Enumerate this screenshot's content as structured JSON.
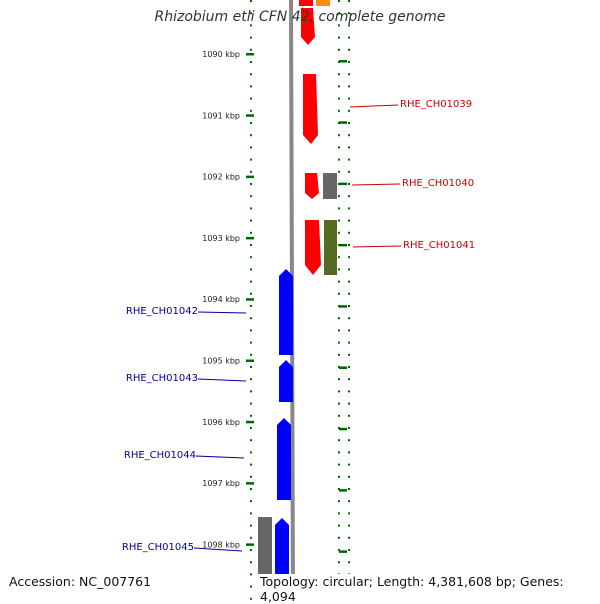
{
  "title": "Rhizobium etli CFN 42, complete genome",
  "footer": {
    "accession_label": "Accession:",
    "accession": "NC_007761",
    "topology": "Topology: circular",
    "length": "Length: 4,381,608 bp",
    "genes": "Genes: 4,094"
  },
  "colors": {
    "backbone": "#888888",
    "tick": "#006600",
    "forward_label": "#cc0000",
    "reverse_label": "#000099",
    "gene_red": "#ff0000",
    "gene_blue": "#0000ff",
    "gene_gray": "#666666",
    "gene_olive": "#556b22",
    "gene_orange": "#ff8c00"
  },
  "scale_labels": [
    "1090 kbp",
    "1091 kbp",
    "1092 kbp",
    "1093 kbp",
    "1094 kbp",
    "1095 kbp",
    "1096 kbp",
    "1097 kbp",
    "1098 kbp"
  ],
  "gene_labels": [
    "RHE_CH01039",
    "RHE_CH01040",
    "RHE_CH01041",
    "RHE_CH01042",
    "RHE_CH01043",
    "RHE_CH01044",
    "RHE_CH01045"
  ]
}
